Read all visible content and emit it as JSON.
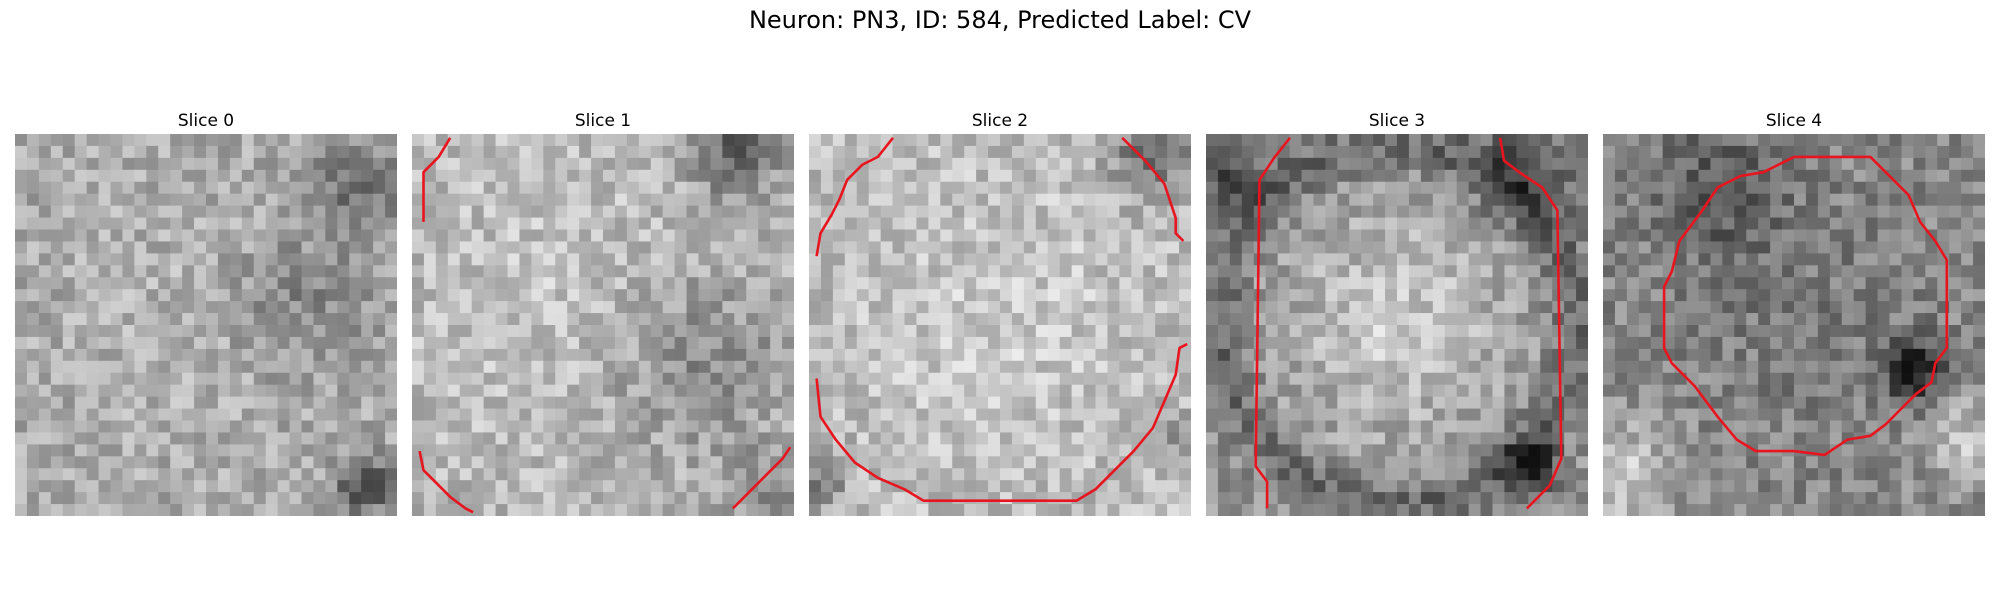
{
  "figure": {
    "title": "Neuron: PN3, ID: 584, Predicted Label: CV",
    "contour_color": "#e8141e"
  },
  "slices": [
    {
      "title": "Slice 0"
    },
    {
      "title": "Slice 1"
    },
    {
      "title": "Slice 2"
    },
    {
      "title": "Slice 3"
    },
    {
      "title": "Slice 4"
    }
  ]
}
